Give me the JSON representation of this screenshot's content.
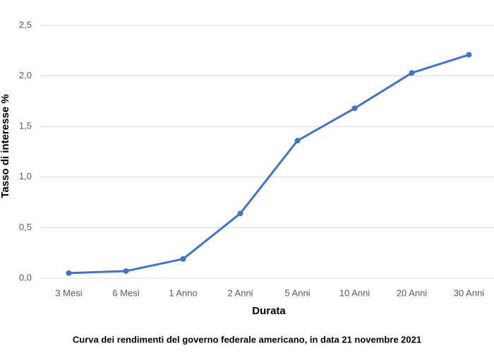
{
  "chart_data": {
    "type": "line",
    "title": "Curva dei rendimenti del governo federale americano, in data 21 novembre 2021",
    "x_label": "Durata",
    "y_label": "Tasso di interesse %",
    "categories": [
      "3 Mesi",
      "6 Mesi",
      "1 Anno",
      "2 Anni",
      "5 Anni",
      "10 Anni",
      "20 Anni",
      "30 Anni"
    ],
    "values": [
      0.05,
      0.07,
      0.19,
      0.64,
      1.36,
      1.68,
      2.03,
      2.21
    ],
    "color": "#4472c4",
    "ylim": [
      0,
      2.5
    ],
    "yticks": [
      {
        "value": 0,
        "label": "0,0"
      },
      {
        "value": 0.5,
        "label": "0,5"
      },
      {
        "value": 1,
        "label": "1,0"
      },
      {
        "value": 1.5,
        "label": "1,5"
      },
      {
        "value": 2,
        "label": "2,0"
      },
      {
        "value": 2.5,
        "label": "2,5"
      }
    ],
    "grid": true
  }
}
